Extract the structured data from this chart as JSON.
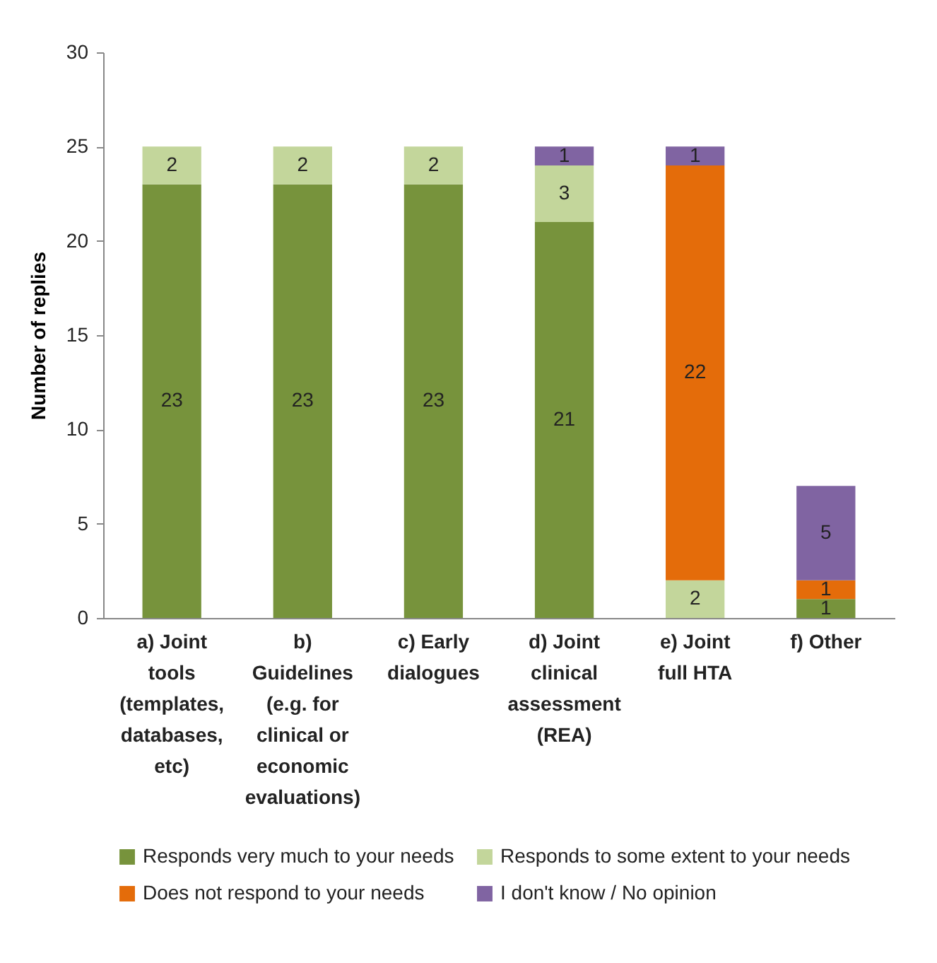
{
  "chart_data": {
    "type": "bar",
    "stacked": true,
    "ylabel": "Number of replies",
    "categories": [
      "a) Joint tools (templates, databases, etc)",
      "b) Guidelines (e.g. for clinical or economic evaluations)",
      "c) Early dialogues",
      "d) Joint clinical assessment (REA)",
      "e) Joint full HTA",
      "f) Other"
    ],
    "series": [
      {
        "name": "Responds very much to your needs",
        "color": "#77933c",
        "values": [
          23,
          23,
          23,
          21,
          0,
          1
        ],
        "value_labels": [
          "23",
          "23",
          "23",
          "21",
          null,
          "1"
        ]
      },
      {
        "name": "Responds to some extent to your needs",
        "color": "#c3d69b",
        "values": [
          2,
          2,
          2,
          3,
          2,
          0
        ],
        "value_labels": [
          "2",
          "2",
          "2",
          "3",
          "2",
          null
        ]
      },
      {
        "name": "Does not respond to your needs",
        "color": "#e46c0a",
        "values": [
          0,
          0,
          0,
          0,
          22,
          1
        ],
        "value_labels": [
          null,
          null,
          null,
          null,
          "22",
          "1"
        ]
      },
      {
        "name": "I don't know / No opinion",
        "color": "#8064a2",
        "values": [
          0,
          0,
          0,
          1,
          1,
          5
        ],
        "value_labels": [
          null,
          null,
          null,
          "1",
          "1",
          "5"
        ]
      }
    ],
    "ylim": [
      0,
      30
    ],
    "yticks": [
      0,
      5,
      10,
      15,
      20,
      25,
      30
    ],
    "grid": false,
    "legend": "bottom"
  }
}
